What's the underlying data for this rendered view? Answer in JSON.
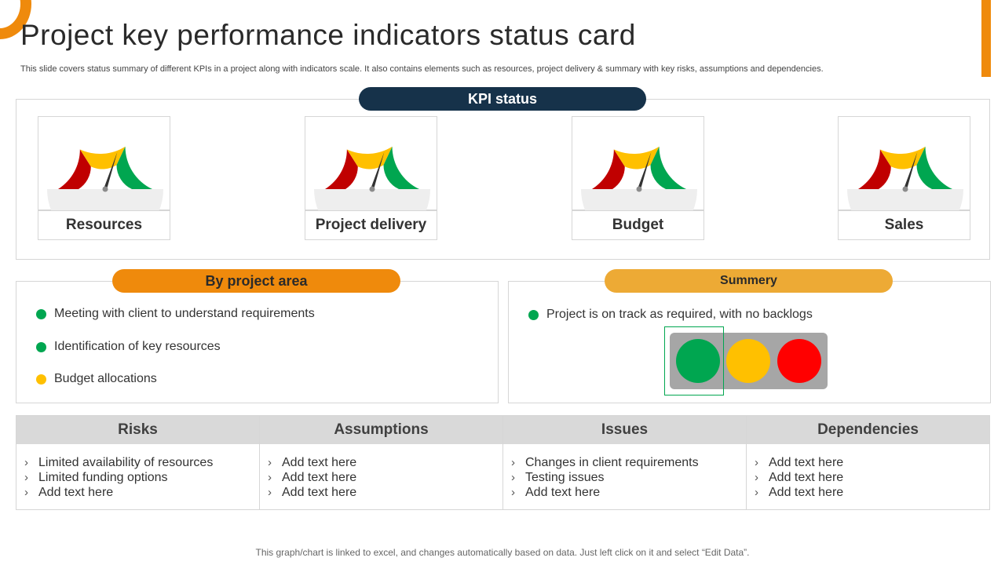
{
  "title": "Project key performance indicators status card",
  "subtitle": "This slide covers status summary of different KPIs in a project along with indicators scale. It also contains elements such as resources, project delivery & summary with key risks, assumptions and dependencies.",
  "kpi": {
    "heading": "KPI status",
    "gauges": [
      {
        "label": "Resources"
      },
      {
        "label": "Project delivery"
      },
      {
        "label": "Budget"
      },
      {
        "label": "Sales"
      }
    ]
  },
  "area": {
    "heading": "By project area",
    "items": [
      {
        "text": "Meeting with client to understand  requirements",
        "status": "green"
      },
      {
        "text": "Identification of key resources",
        "status": "green"
      },
      {
        "text": "Budget allocations",
        "status": "yellow"
      }
    ]
  },
  "summary": {
    "heading": "Summery",
    "text": "Project is on track as required, with no backlogs",
    "status": "green"
  },
  "table": {
    "columns": [
      {
        "header": "Risks",
        "items": [
          "Limited availability of resources",
          "Limited funding options",
          "Add text here"
        ]
      },
      {
        "header": "Assumptions",
        "items": [
          "Add text here",
          "Add text here",
          "Add text here"
        ]
      },
      {
        "header": "Issues",
        "items": [
          "Changes in client requirements",
          "Testing issues",
          "Add text here"
        ]
      },
      {
        "header": "Dependencies",
        "items": [
          "Add text here",
          "Add text here",
          "Add text here"
        ]
      }
    ]
  },
  "footer": "This graph/chart is linked to excel,  and changes automatically based on data. Just left click on it and select “Edit Data”.",
  "colors": {
    "orange": "#ef8a0c",
    "navy": "#16324a",
    "green": "#00a650",
    "yellow": "#ffc000",
    "red": "#ff0000",
    "gauge_red": "#c00000"
  }
}
